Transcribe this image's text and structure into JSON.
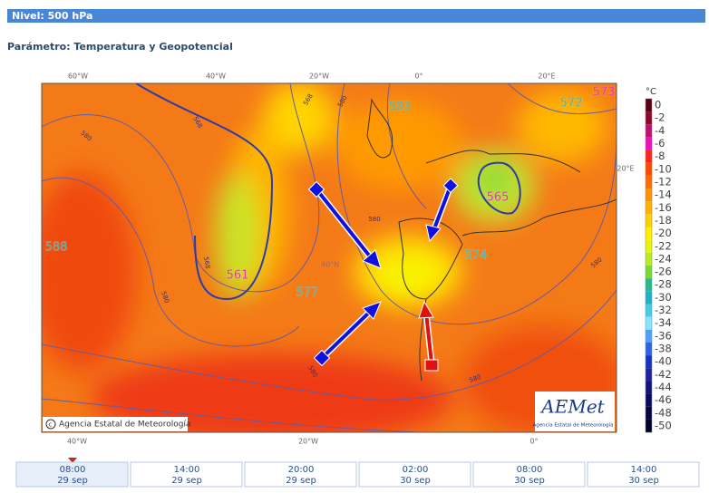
{
  "header": {
    "level": "Nivel: 500 hPa",
    "parameter": "Parámetro: Temperatura y Geopotencial"
  },
  "map": {
    "top_longitudes": [
      "60°W",
      "40°W",
      "20°W",
      "0°",
      "20°E"
    ],
    "bottom_longitudes": [
      "40°W",
      "20°W",
      "0°"
    ],
    "right_latitude": "20°E",
    "inner_latitude": "40°N",
    "contour_labels": [
      {
        "text": "573",
        "color": "#e0109a"
      },
      {
        "text": "572",
        "color": "#2aa7a0"
      },
      {
        "text": "583",
        "color": "#2aa7a0"
      },
      {
        "text": "565",
        "color": "#e0109a"
      },
      {
        "text": "561",
        "color": "#e0109a"
      },
      {
        "text": "577",
        "color": "#2aa7a0"
      },
      {
        "text": "574",
        "color": "#2aa7a0"
      },
      {
        "text": "588",
        "color": "#2aa7a0"
      }
    ],
    "line_labels": [
      "568",
      "568",
      "580",
      "568",
      "580",
      "580",
      "580",
      "580",
      "580",
      "580"
    ],
    "copyright": "Agencia Estatal de Meteorología",
    "logo": {
      "name": "AEMet",
      "caption": "Agencia Estatal de Meteorología"
    }
  },
  "legend": {
    "unit": "°C",
    "entries": [
      {
        "label": 0,
        "color": "#5a0012"
      },
      {
        "label": -2,
        "color": "#8c0a28"
      },
      {
        "label": -4,
        "color": "#c0106e"
      },
      {
        "label": -6,
        "color": "#ee10c0"
      },
      {
        "label": -8,
        "color": "#ff2418"
      },
      {
        "label": -10,
        "color": "#ff4a00"
      },
      {
        "label": -12,
        "color": "#ff6c00"
      },
      {
        "label": -14,
        "color": "#ff9000"
      },
      {
        "label": -16,
        "color": "#ffb000"
      },
      {
        "label": -18,
        "color": "#ffd000"
      },
      {
        "label": -20,
        "color": "#ffee00"
      },
      {
        "label": -22,
        "color": "#e4f50a"
      },
      {
        "label": -24,
        "color": "#b8ec24"
      },
      {
        "label": -26,
        "color": "#7cd838"
      },
      {
        "label": -28,
        "color": "#2ab890"
      },
      {
        "label": -30,
        "color": "#20b0c8"
      },
      {
        "label": -32,
        "color": "#48cbe8"
      },
      {
        "label": -34,
        "color": "#8ae2ff"
      },
      {
        "label": -36,
        "color": "#4aa0ff"
      },
      {
        "label": -38,
        "color": "#2a64e4"
      },
      {
        "label": -40,
        "color": "#1432c4"
      },
      {
        "label": -42,
        "color": "#2020a0"
      },
      {
        "label": -44,
        "color": "#121280"
      },
      {
        "label": -46,
        "color": "#0a0a62"
      },
      {
        "label": -48,
        "color": "#060642"
      },
      {
        "label": -50,
        "color": "#000024"
      }
    ]
  },
  "timeline": [
    {
      "time": "08:00",
      "date": "29 sep"
    },
    {
      "time": "14:00",
      "date": "29 sep"
    },
    {
      "time": "20:00",
      "date": "29 sep"
    },
    {
      "time": "02:00",
      "date": "30 sep"
    },
    {
      "time": "08:00",
      "date": "30 sep"
    },
    {
      "time": "14:00",
      "date": "30 sep"
    }
  ]
}
